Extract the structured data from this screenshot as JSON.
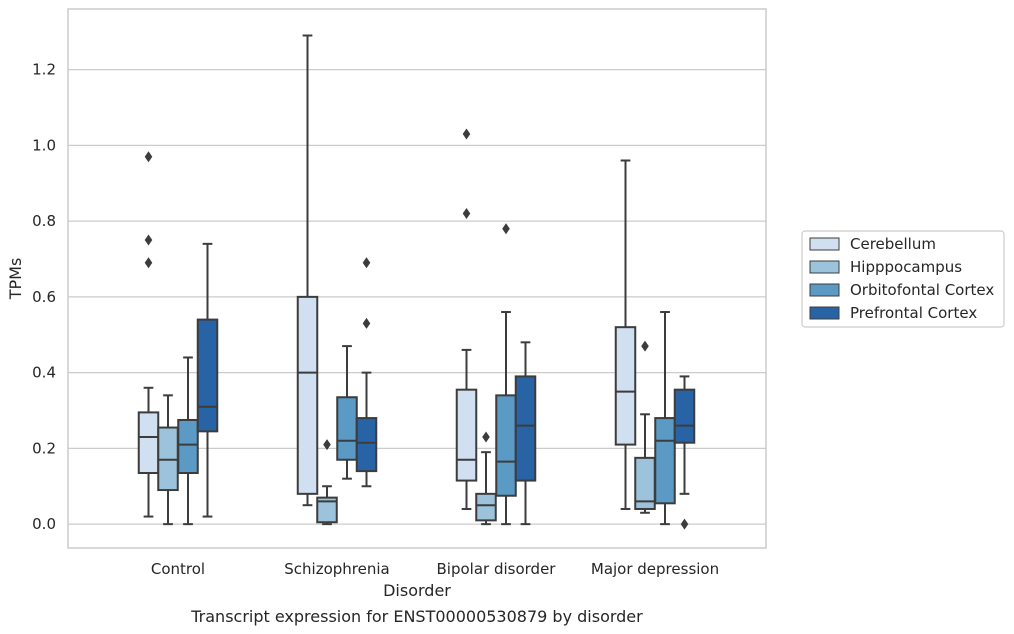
{
  "chart_data": {
    "type": "box",
    "title": "Transcript expression for ENST00000530879 by disorder",
    "xlabel": "Disorder",
    "ylabel": "TPMs",
    "ylim": [
      -0.063,
      1.36
    ],
    "yticks": [
      0.0,
      0.2,
      0.4,
      0.6,
      0.8,
      1.0,
      1.2
    ],
    "ytick_labels": [
      "0.0",
      "0.2",
      "0.4",
      "0.6",
      "0.8",
      "1.0",
      "1.2"
    ],
    "grid": "horizontal",
    "legend_position": "right",
    "categories": [
      "Control",
      "Schizophrenia",
      "Bipolar disorder",
      "Major depression"
    ],
    "series": [
      {
        "name": "Cerebellum",
        "color": "#d0e0f1",
        "boxes": [
          {
            "whislo": 0.02,
            "q1": 0.135,
            "med": 0.23,
            "q3": 0.295,
            "whishi": 0.36,
            "fliers": [
              0.69,
              0.75,
              0.97
            ]
          },
          {
            "whislo": 0.05,
            "q1": 0.08,
            "med": 0.4,
            "q3": 0.6,
            "whishi": 1.29,
            "fliers": []
          },
          {
            "whislo": 0.04,
            "q1": 0.115,
            "med": 0.17,
            "q3": 0.355,
            "whishi": 0.46,
            "fliers": [
              0.82,
              1.03
            ]
          },
          {
            "whislo": 0.04,
            "q1": 0.21,
            "med": 0.35,
            "q3": 0.52,
            "whishi": 0.96,
            "fliers": []
          }
        ]
      },
      {
        "name": "Hipppocampus",
        "color": "#9dc3dc",
        "boxes": [
          {
            "whislo": 0.0,
            "q1": 0.09,
            "med": 0.17,
            "q3": 0.255,
            "whishi": 0.34,
            "fliers": []
          },
          {
            "whislo": 0.0,
            "q1": 0.005,
            "med": 0.06,
            "q3": 0.07,
            "whishi": 0.1,
            "fliers": [
              0.21
            ]
          },
          {
            "whislo": 0.0,
            "q1": 0.01,
            "med": 0.05,
            "q3": 0.08,
            "whishi": 0.19,
            "fliers": [
              0.23
            ]
          },
          {
            "whislo": 0.03,
            "q1": 0.04,
            "med": 0.06,
            "q3": 0.175,
            "whishi": 0.29,
            "fliers": [
              0.47
            ]
          }
        ]
      },
      {
        "name": "Orbitofontal Cortex",
        "color": "#5a9ac5",
        "boxes": [
          {
            "whislo": 0.0,
            "q1": 0.135,
            "med": 0.21,
            "q3": 0.275,
            "whishi": 0.44,
            "fliers": []
          },
          {
            "whislo": 0.12,
            "q1": 0.17,
            "med": 0.22,
            "q3": 0.335,
            "whishi": 0.47,
            "fliers": []
          },
          {
            "whislo": 0.0,
            "q1": 0.075,
            "med": 0.165,
            "q3": 0.34,
            "whishi": 0.56,
            "fliers": [
              0.78
            ]
          },
          {
            "whislo": 0.0,
            "q1": 0.055,
            "med": 0.22,
            "q3": 0.28,
            "whishi": 0.56,
            "fliers": []
          }
        ]
      },
      {
        "name": "Prefrontal Cortex",
        "color": "#2864a5",
        "boxes": [
          {
            "whislo": 0.02,
            "q1": 0.245,
            "med": 0.31,
            "q3": 0.54,
            "whishi": 0.74,
            "fliers": []
          },
          {
            "whislo": 0.1,
            "q1": 0.14,
            "med": 0.215,
            "q3": 0.28,
            "whishi": 0.4,
            "fliers": [
              0.53,
              0.69
            ]
          },
          {
            "whislo": 0.0,
            "q1": 0.115,
            "med": 0.26,
            "q3": 0.39,
            "whishi": 0.48,
            "fliers": []
          },
          {
            "whislo": 0.08,
            "q1": 0.215,
            "med": 0.26,
            "q3": 0.355,
            "whishi": 0.39,
            "fliers": [
              0.0
            ]
          }
        ]
      }
    ]
  }
}
